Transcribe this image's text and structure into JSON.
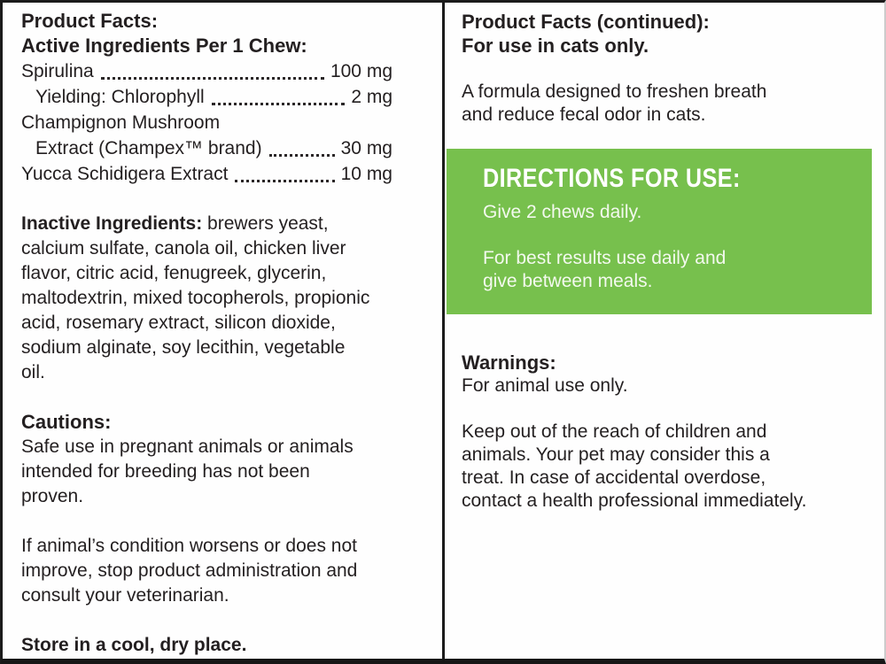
{
  "colors": {
    "accent_green": "#77c04d",
    "text": "#231f20",
    "banner_text": "#ffffff"
  },
  "left": {
    "title": "Product Facts:",
    "active_heading": "Active Ingredients Per 1 Chew:",
    "active_rows": [
      {
        "label": "Spirulina",
        "value": "100 mg"
      },
      {
        "label": "Yielding: Chlorophyll",
        "value": "2 mg"
      },
      {
        "label": "Champignon Mushroom",
        "value": ""
      },
      {
        "label": "Extract (Champex™ brand)",
        "value": "30 mg"
      },
      {
        "label": "Yucca Schidigera Extract",
        "value": "10 mg"
      }
    ],
    "inactive_heading": "Inactive Ingredients:",
    "inactive_text": " brewers yeast,\ncalcium sulfate, canola oil, chicken liver\nflavor, citric acid, fenugreek, glycerin,\nmaltodextrin, mixed tocopherols, propionic\nacid, rosemary extract, silicon dioxide,\nsodium alginate, soy lecithin, vegetable\noil.",
    "cautions_heading": "Cautions:",
    "cautions_text1": "Safe use in pregnant animals or animals\nintended for breeding has not been\nproven.",
    "cautions_text2": "If animal’s condition worsens or does not\nimprove, stop product administration and\nconsult your veterinarian.",
    "storage": "Store in a cool, dry place."
  },
  "right": {
    "title": "Product Facts (continued):",
    "subtitle": "For use in cats only.",
    "description": "A formula designed to freshen breath\nand reduce fecal odor in cats.",
    "directions": {
      "heading": "DIRECTIONS FOR USE:",
      "line1": "Give 2 chews daily.",
      "line2": "For best results use daily and\ngive between meals."
    },
    "warnings_heading": "Warnings:",
    "warnings_line1": "For animal use only.",
    "warnings_text": "Keep out of the reach of children and\nanimals. Your pet may consider this a\ntreat. In case of accidental overdose,\ncontact a health professional immediately."
  }
}
